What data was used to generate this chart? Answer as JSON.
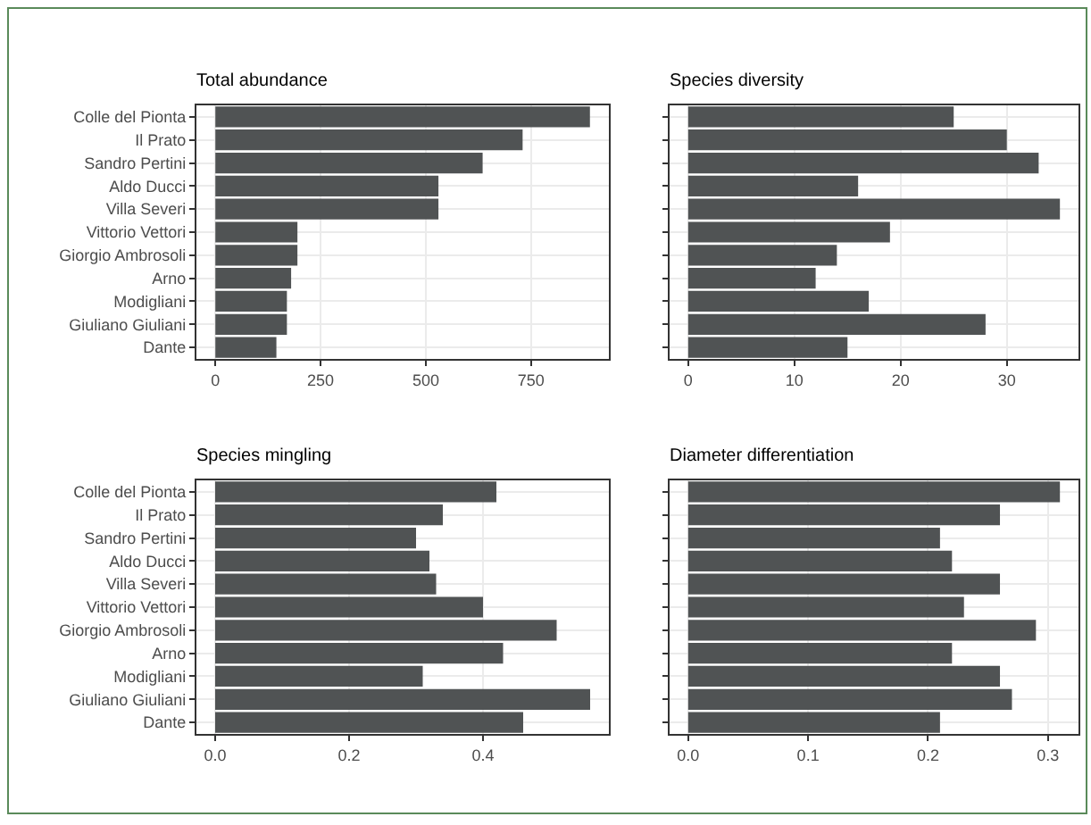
{
  "chart_data": [
    {
      "type": "bar",
      "orientation": "horizontal",
      "title": "Total abundance",
      "categories": [
        "Colle del Pionta",
        "Il Prato",
        "Sandro Pertini",
        "Aldo Ducci",
        "Villa Severi",
        "Vittorio Vettori",
        "Giorgio Ambrosoli",
        "Arno",
        "Modigliani",
        "Giuliano Giuliani",
        "Dante"
      ],
      "values": [
        890,
        730,
        635,
        530,
        530,
        195,
        195,
        180,
        170,
        170,
        145
      ],
      "color": "#505354",
      "xlim": [
        -45,
        935
      ],
      "xticks": [
        0,
        250,
        500,
        750
      ],
      "grid": true
    },
    {
      "type": "bar",
      "orientation": "horizontal",
      "title": "Species diversity",
      "categories": [
        null,
        null,
        null,
        null,
        null,
        null,
        null,
        null,
        null,
        null,
        null
      ],
      "values": [
        25,
        30,
        33,
        16,
        35,
        19,
        14,
        12,
        17,
        28,
        15
      ],
      "color": "#505354",
      "xlim": [
        -1.75,
        36.75
      ],
      "xticks": [
        0,
        10,
        20,
        30
      ],
      "grid": true,
      "tick_labels": "x"
    },
    {
      "type": "bar",
      "orientation": "horizontal",
      "title": "Species mingling",
      "categories": [
        "Colle del Pionta",
        "Il Prato",
        "Sandro Pertini",
        "Aldo Ducci",
        "Villa Severi",
        "Vittorio Vettori",
        "Giorgio Ambrosoli",
        "Arno",
        "Modigliani",
        "Giuliano Giuliani",
        "Dante"
      ],
      "values": [
        0.42,
        0.34,
        0.3,
        0.32,
        0.33,
        0.4,
        0.51,
        0.43,
        0.31,
        0.56,
        0.46
      ],
      "color": "#505354",
      "xlim": [
        -0.028,
        0.588
      ],
      "xticks": [
        {
          "value": 0,
          "label": "0.0"
        },
        0.2,
        0.4
      ],
      "grid": true
    },
    {
      "type": "bar",
      "orientation": "horizontal",
      "title": "Diameter differentiation",
      "categories": [
        null,
        null,
        null,
        null,
        null,
        null,
        null,
        null,
        null,
        null,
        null
      ],
      "values": [
        0.31,
        0.26,
        0.21,
        0.22,
        0.26,
        0.23,
        0.29,
        0.22,
        0.26,
        0.27,
        0.21
      ],
      "color": "#505354",
      "xlim": [
        -0.0155,
        0.3255
      ],
      "xticks": [
        {
          "value": 0,
          "label": "0.0"
        },
        0.1,
        0.2,
        0.3
      ],
      "grid": true,
      "tick_labels": "x"
    }
  ]
}
